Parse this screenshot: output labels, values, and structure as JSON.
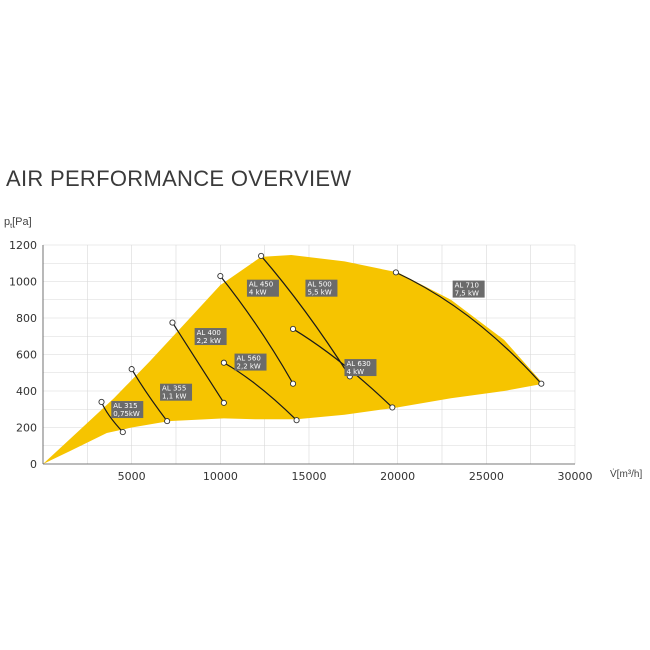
{
  "page_title": "AIR PERFORMANCE OVERVIEW",
  "chart_data": {
    "type": "line",
    "title": "AIR PERFORMANCE OVERVIEW",
    "ylabel_symbol": "p",
    "ylabel_sub": "t",
    "ylabel_unit": "[Pa]",
    "xlabel": "V̇[m³/h]",
    "xlim": [
      0,
      30000
    ],
    "ylim": [
      0,
      1200
    ],
    "xticks": [
      "5000",
      "10000",
      "15000",
      "20000",
      "25000",
      "30000"
    ],
    "yticks": [
      "0",
      "200",
      "400",
      "600",
      "800",
      "1000",
      "1200"
    ],
    "grid": true,
    "colors": {
      "area": "#F6C400",
      "curve": "#1a1a1a",
      "label_box": "#6b6b6b",
      "grid": "#d8d8d8"
    },
    "envelope_area": {
      "x": [
        0,
        2000,
        4000,
        6000,
        8000,
        10000,
        12300,
        14000,
        17000,
        20000,
        23000,
        26000,
        28200,
        26000,
        23000,
        20000,
        17000,
        14300,
        12000,
        10200,
        7100,
        5000,
        3600,
        1500,
        0
      ],
      "y": [
        0,
        180,
        360,
        560,
        770,
        980,
        1135,
        1145,
        1110,
        1050,
        900,
        680,
        440,
        400,
        360,
        310,
        270,
        245,
        245,
        250,
        235,
        200,
        170,
        70,
        0
      ]
    },
    "series": [
      {
        "name": "AL 315",
        "power": "0,75kW",
        "x": [
          3300,
          3800,
          4500
        ],
        "y": [
          340,
          250,
          175
        ]
      },
      {
        "name": "AL 355",
        "power": "1,1 kW",
        "x": [
          5000,
          6000,
          7000
        ],
        "y": [
          520,
          370,
          235
        ]
      },
      {
        "name": "AL 400",
        "power": "2,2 kW",
        "x": [
          7300,
          8800,
          10200
        ],
        "y": [
          775,
          560,
          335
        ]
      },
      {
        "name": "AL 450",
        "power": "4 kW",
        "x": [
          10000,
          12500,
          14100
        ],
        "y": [
          1030,
          730,
          440
        ]
      },
      {
        "name": "AL 500",
        "power": "5,5 kW",
        "x": [
          12300,
          15000,
          17300
        ],
        "y": [
          1140,
          840,
          480
        ]
      },
      {
        "name": "AL 560",
        "power": "2,2 kW",
        "x": [
          10200,
          12300,
          14300
        ],
        "y": [
          555,
          430,
          240
        ]
      },
      {
        "name": "AL 630",
        "power": "4 kW",
        "x": [
          14100,
          17000,
          19700
        ],
        "y": [
          740,
          560,
          310
        ]
      },
      {
        "name": "AL 710",
        "power": "7,5 kW",
        "x": [
          19900,
          24500,
          28100
        ],
        "y": [
          1050,
          830,
          440
        ]
      }
    ],
    "labels": [
      {
        "series": "AL 315",
        "at": [
          3850,
          345
        ]
      },
      {
        "series": "AL 355",
        "at": [
          6600,
          440
        ]
      },
      {
        "series": "AL 400",
        "at": [
          8550,
          745
        ]
      },
      {
        "series": "AL 450",
        "at": [
          11500,
          1010
        ]
      },
      {
        "series": "AL 500",
        "at": [
          14800,
          1010
        ]
      },
      {
        "name": "AL 560",
        "at": [
          10800,
          605
        ]
      },
      {
        "series": "AL 630",
        "at": [
          17000,
          575
        ]
      },
      {
        "series": "AL 710",
        "at": [
          23100,
          1005
        ]
      }
    ]
  }
}
